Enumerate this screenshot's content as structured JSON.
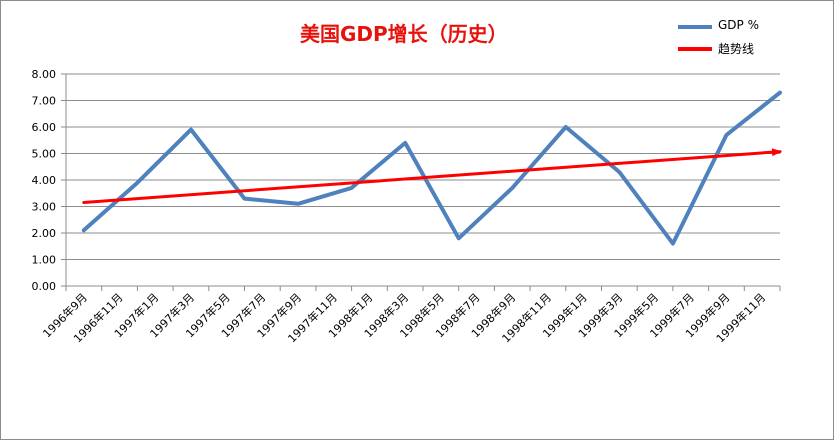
{
  "chart_data": {
    "type": "line",
    "title": "美国GDP增长（历史）",
    "categories": [
      "1996年9月",
      "1996年11月",
      "1997年1月",
      "1997年3月",
      "1997年5月",
      "1997年7月",
      "1997年9月",
      "1997年11月",
      "1998年1月",
      "1998年3月",
      "1998年5月",
      "1998年7月",
      "1998年9月",
      "1998年11月",
      "1999年1月",
      "1999年3月",
      "1999年5月",
      "1999年7月",
      "1999年9月",
      "1999年11月"
    ],
    "ylim": [
      0,
      8
    ],
    "yticks": [
      "0.00",
      "1.00",
      "2.00",
      "3.00",
      "4.00",
      "5.00",
      "6.00",
      "7.00",
      "8.00"
    ],
    "grid": true,
    "legend_position": "top-right",
    "series": [
      {
        "name": "GDP %",
        "color": "#4f81bd",
        "points": [
          [
            0.0,
            2.1
          ],
          [
            1.5,
            3.9
          ],
          [
            3.0,
            5.9
          ],
          [
            4.5,
            3.3
          ],
          [
            6.0,
            3.1
          ],
          [
            7.5,
            3.7
          ],
          [
            9.0,
            5.4
          ],
          [
            10.5,
            1.8
          ],
          [
            12.0,
            3.7
          ],
          [
            13.5,
            6.0
          ],
          [
            15.0,
            4.3
          ],
          [
            16.5,
            1.6
          ],
          [
            18.0,
            5.7
          ],
          [
            19.5,
            7.3
          ]
        ]
      },
      {
        "name": "趋势线",
        "color": "#ff0000",
        "points": [
          [
            0.0,
            3.15
          ],
          [
            19.5,
            5.07
          ]
        ]
      }
    ]
  }
}
